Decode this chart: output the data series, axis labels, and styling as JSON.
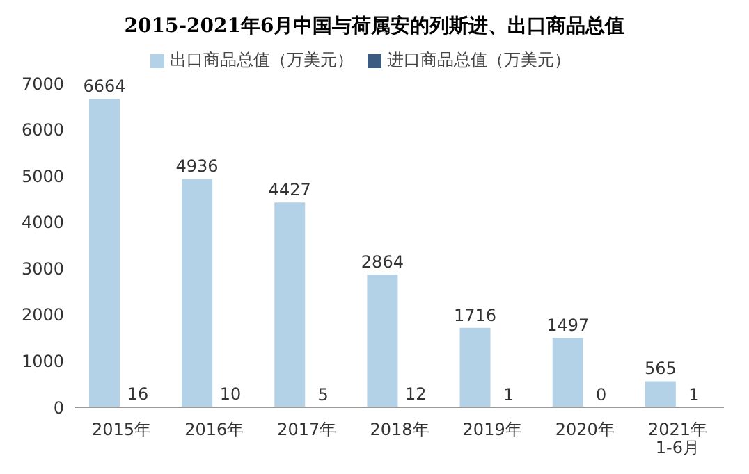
{
  "chart_data": {
    "type": "bar",
    "title": "2015-2021年6月中国与荷属安的列斯进、出口商品总值",
    "categories": [
      "2015年",
      "2016年",
      "2017年",
      "2018年",
      "2019年",
      "2020年",
      "2021年\n1-6月"
    ],
    "series": [
      {
        "name": "出口商品总值（万美元）",
        "color": "#b4d2e7",
        "values": [
          6664,
          4936,
          4427,
          2864,
          1716,
          1497,
          565
        ]
      },
      {
        "name": "进口商品总值（万美元）",
        "color": "#3d5a80",
        "values": [
          16,
          10,
          5,
          12,
          1,
          0,
          1
        ]
      }
    ],
    "ylim": [
      0,
      7000
    ],
    "yticks": [
      0,
      1000,
      2000,
      3000,
      4000,
      5000,
      6000,
      7000
    ],
    "grid": false,
    "legend": "top",
    "data_labels": true
  }
}
